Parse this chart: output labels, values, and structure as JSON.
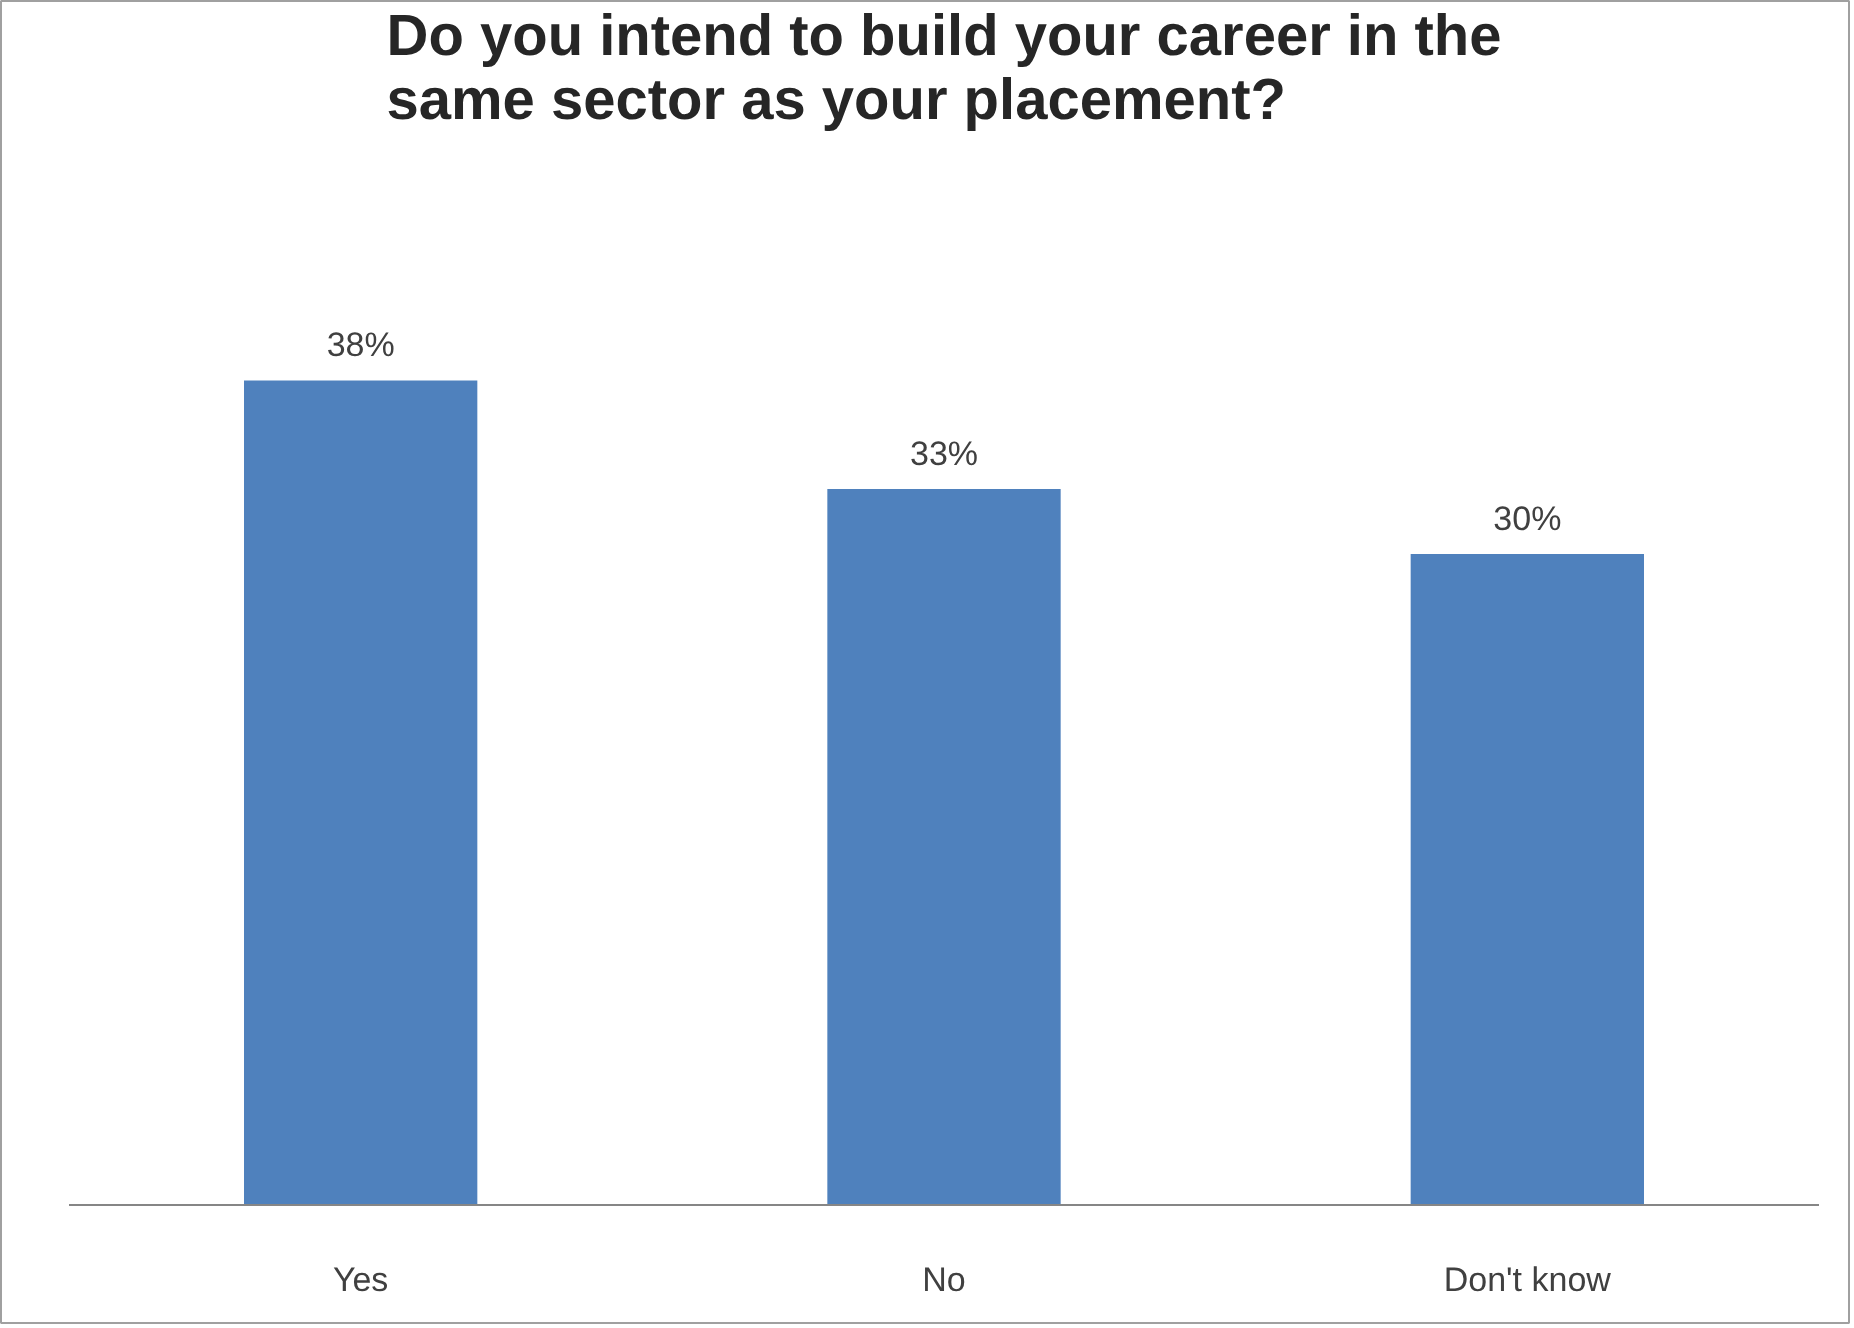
{
  "chart_data": {
    "type": "bar",
    "title": "Do you intend to build your career in the same sector as your placement?",
    "categories": [
      "Yes",
      "No",
      "Don't know"
    ],
    "values": [
      38,
      33,
      30
    ],
    "value_labels": [
      "38%",
      "33%",
      "30%"
    ],
    "color": "#4f81bd",
    "grid": false
  }
}
